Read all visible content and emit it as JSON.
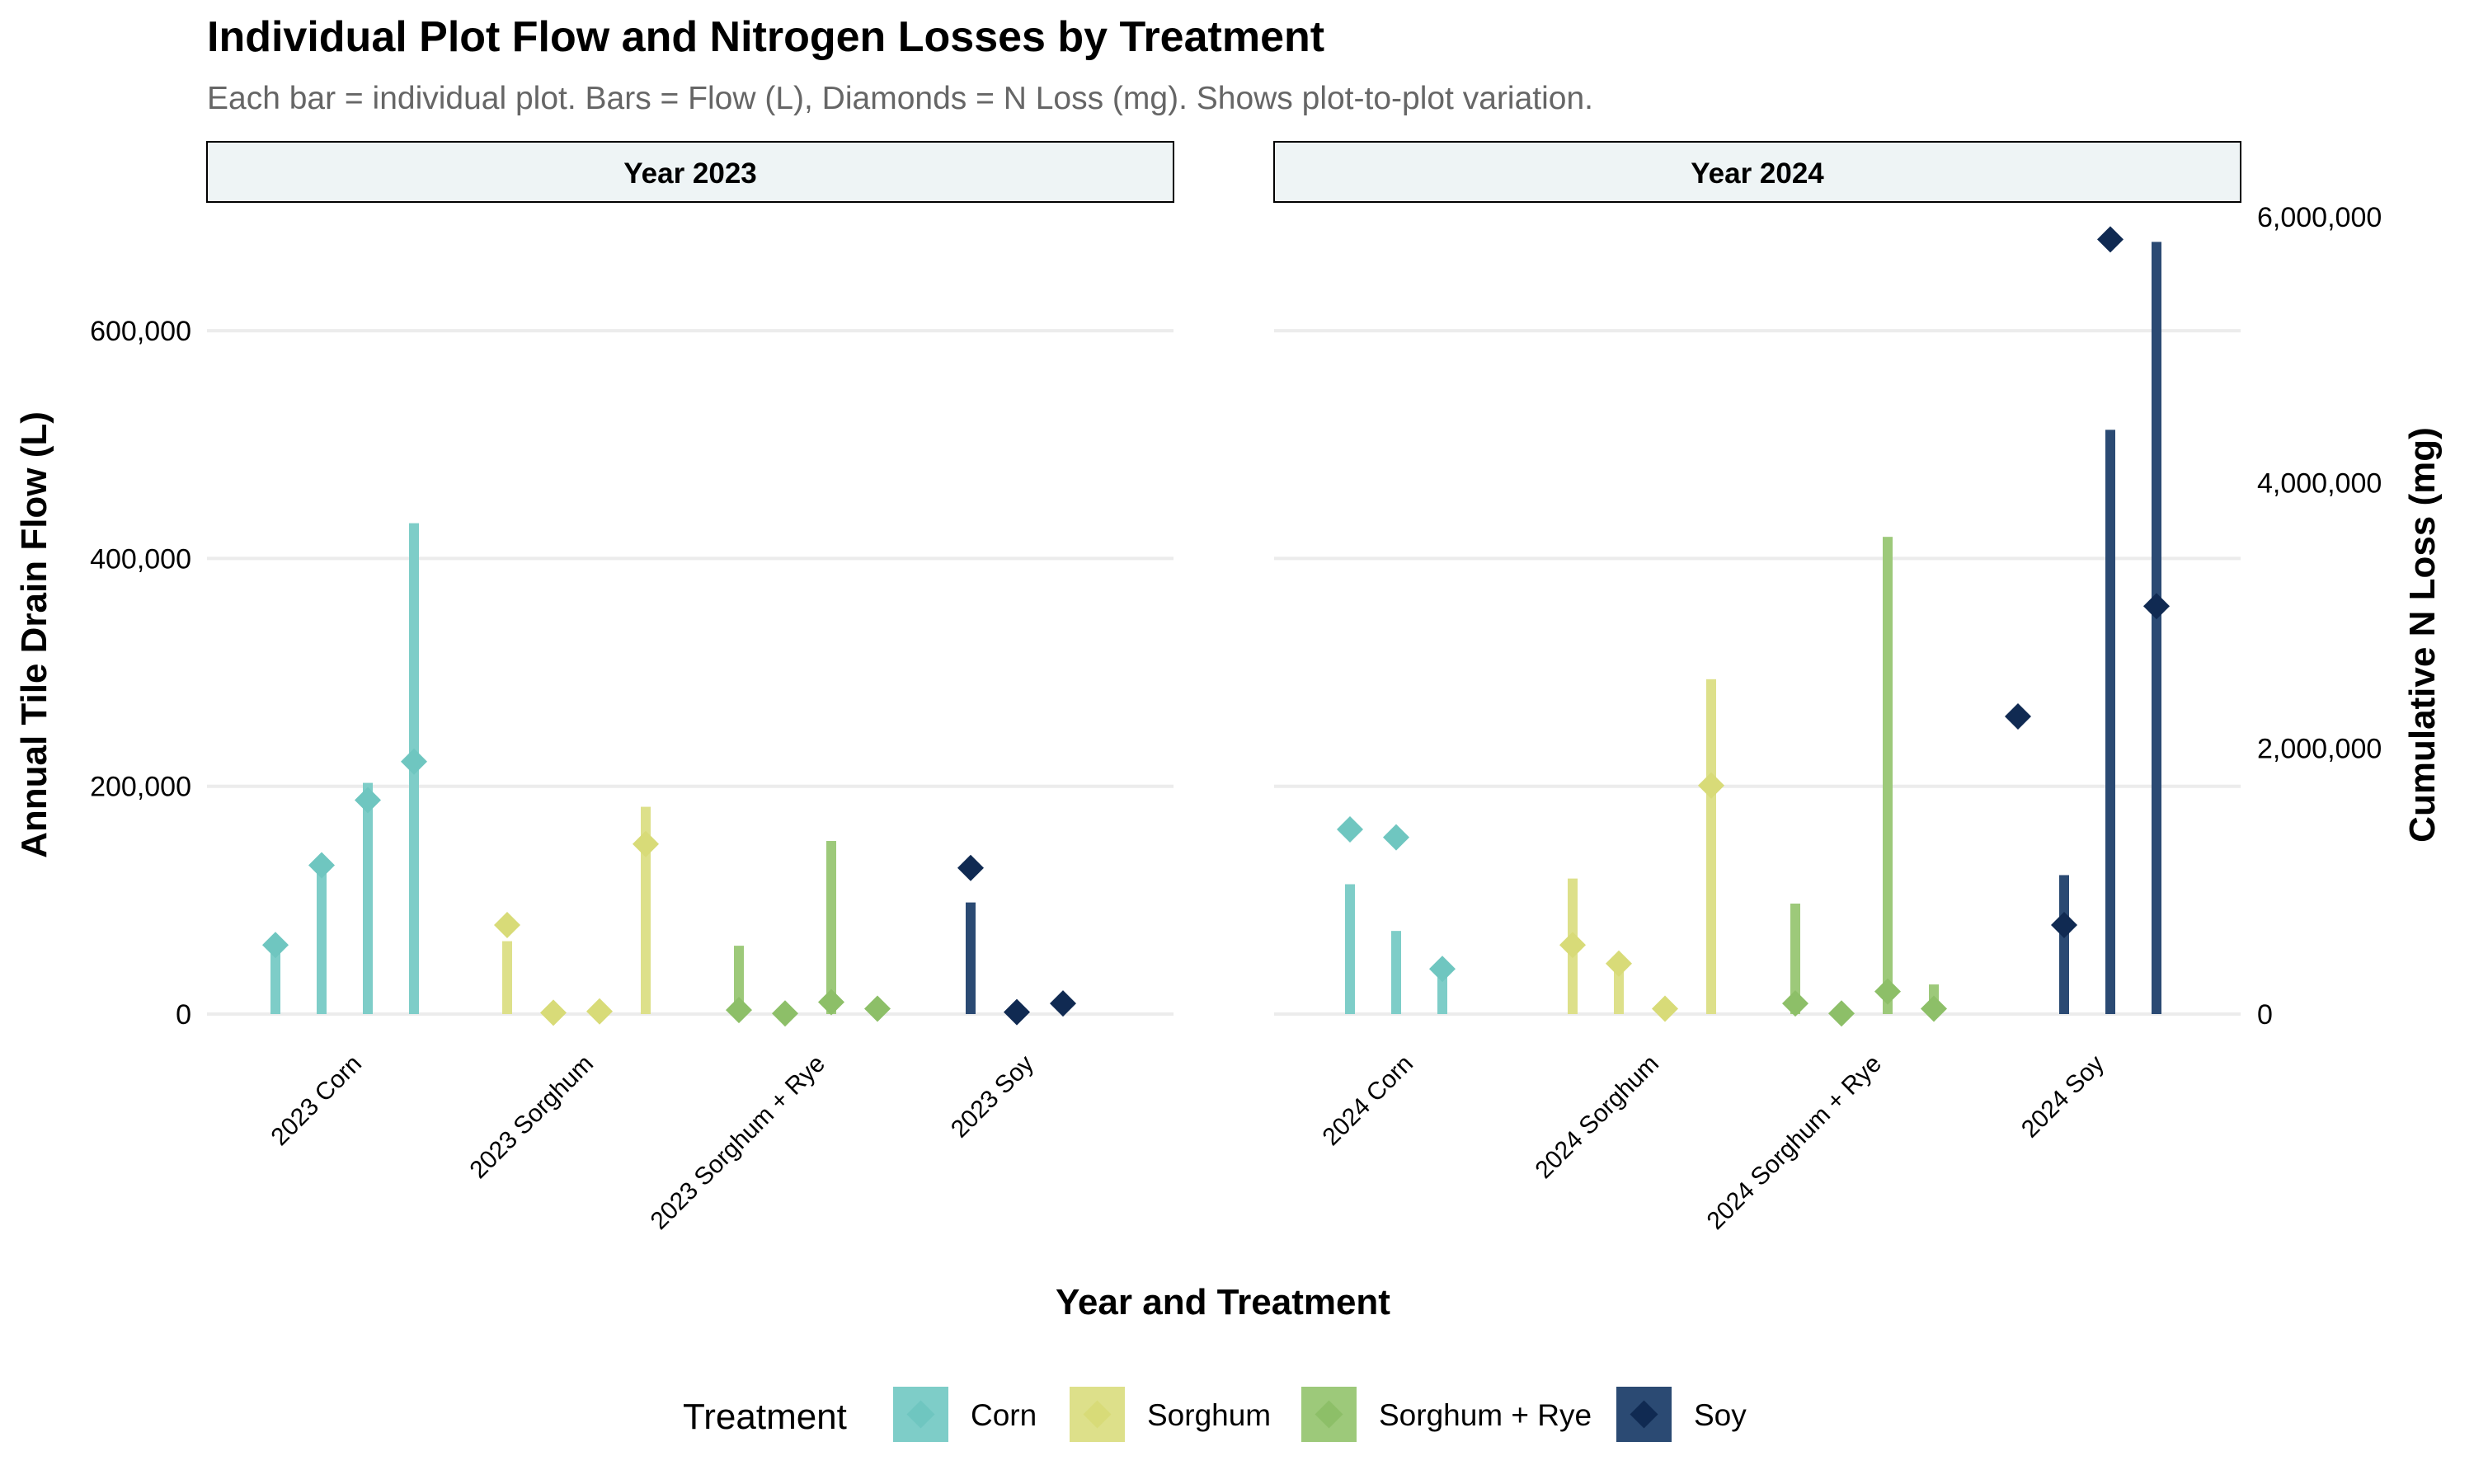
{
  "colors": {
    "Corn": "#7ecdc8",
    "Sorghum": "#dde08a",
    "Sorghum + Rye": "#9dc97a",
    "Soy": "#2b4a73",
    "Corn_diamond": "#6fc6c0",
    "Sorghum_diamond": "#d8db78",
    "Sorghum + Rye_diamond": "#8dbf68",
    "Soy_diamond": "#102a52",
    "grid": "#ececec",
    "strip_fill": "#eef4f5",
    "subtitle": "#666666"
  },
  "chart_data": {
    "type": "bar",
    "title": "Individual Plot Flow and Nitrogen Losses by Treatment",
    "subtitle": "Each bar = individual plot. Bars = Flow (L), Diamonds = N Loss (mg). Shows plot-to-plot variation.",
    "xlabel": "Year and Treatment",
    "ylabel": "Annual Tile Drain Flow (L)",
    "y2label": "Cumulative N Loss (mg)",
    "ylim": [
      0,
      700000
    ],
    "y2lim": [
      0,
      6000000
    ],
    "y_ticks": [
      0,
      200000,
      400000,
      600000
    ],
    "y_tick_labels": [
      "0",
      "200,000",
      "400,000",
      "600,000"
    ],
    "y2_ticks": [
      0,
      2000000,
      4000000,
      6000000
    ],
    "y2_tick_labels": [
      "0",
      "2,000,000",
      "4,000,000",
      "6,000,000"
    ],
    "legend": {
      "title": "Treatment",
      "position": "bottom",
      "items": [
        "Corn",
        "Sorghum",
        "Sorghum + Rye",
        "Soy"
      ]
    },
    "facets": [
      {
        "label": "Year 2023",
        "groups": [
          {
            "label": "2023 Corn",
            "treatment": "Corn",
            "plots": [
              {
                "flow": 60000,
                "n_loss": 520000
              },
              {
                "flow": 125000,
                "n_loss": 1120000
              },
              {
                "flow": 203000,
                "n_loss": 1610000
              },
              {
                "flow": 431000,
                "n_loss": 1900000
              }
            ]
          },
          {
            "label": "2023 Sorghum",
            "treatment": "Sorghum",
            "plots": [
              {
                "flow": 64000,
                "n_loss": 670000
              },
              {
                "flow": 0,
                "n_loss": 10000
              },
              {
                "flow": 0,
                "n_loss": 20000
              },
              {
                "flow": 182000,
                "n_loss": 1280000
              }
            ]
          },
          {
            "label": "2023 Sorghum + Rye",
            "treatment": "Sorghum + Rye",
            "plots": [
              {
                "flow": 60000,
                "n_loss": 30000
              },
              {
                "flow": 0,
                "n_loss": 5000
              },
              {
                "flow": 152000,
                "n_loss": 90000
              },
              {
                "flow": 0,
                "n_loss": 40000
              }
            ]
          },
          {
            "label": "2023 Soy",
            "treatment": "Soy",
            "plots": [
              {
                "flow": 98000,
                "n_loss": 1100000
              },
              {
                "flow": 0,
                "n_loss": 15000
              },
              {
                "flow": 0,
                "n_loss": 80000
              }
            ]
          }
        ]
      },
      {
        "label": "Year 2024",
        "groups": [
          {
            "label": "2024 Corn",
            "treatment": "Corn",
            "plots": [
              {
                "flow": 114000,
                "n_loss": 1390000
              },
              {
                "flow": 73000,
                "n_loss": 1330000
              },
              {
                "flow": 42000,
                "n_loss": 340000
              }
            ]
          },
          {
            "label": "2024 Sorghum",
            "treatment": "Sorghum",
            "plots": [
              {
                "flow": 119000,
                "n_loss": 520000
              },
              {
                "flow": 38000,
                "n_loss": 380000
              },
              {
                "flow": 0,
                "n_loss": 40000
              },
              {
                "flow": 294000,
                "n_loss": 1720000
              }
            ]
          },
          {
            "label": "2024 Sorghum + Rye",
            "treatment": "Sorghum + Rye",
            "plots": [
              {
                "flow": 97000,
                "n_loss": 80000
              },
              {
                "flow": 0,
                "n_loss": 5000
              },
              {
                "flow": 419000,
                "n_loss": 170000
              },
              {
                "flow": 26000,
                "n_loss": 40000
              }
            ]
          },
          {
            "label": "2024 Soy",
            "treatment": "Soy",
            "plots": [
              {
                "flow": 0,
                "n_loss": 2240000
              },
              {
                "flow": 122000,
                "n_loss": 670000
              },
              {
                "flow": 513000,
                "n_loss": 5830000
              },
              {
                "flow": 678000,
                "n_loss": 3070000
              }
            ]
          }
        ]
      }
    ]
  }
}
